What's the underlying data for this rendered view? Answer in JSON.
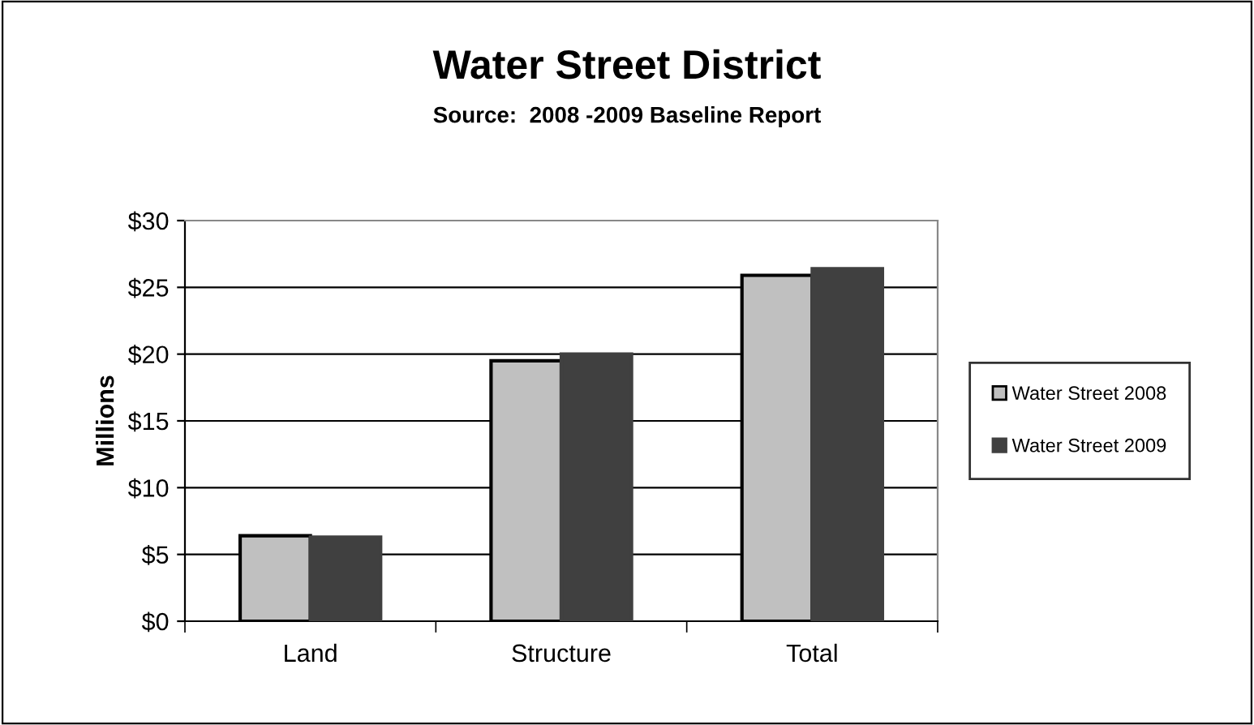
{
  "chart_data": {
    "type": "bar",
    "title": "Water Street District",
    "subtitle": "Source:  2008 -2009 Baseline Report",
    "ylabel": "Millions",
    "categories": [
      "Land",
      "Structure",
      "Total"
    ],
    "series": [
      {
        "name": "Water Street 2008",
        "color": "#c0c0c0",
        "values": [
          6.4,
          19.5,
          25.9
        ]
      },
      {
        "name": "Water Street 2009",
        "color": "#404040",
        "values": [
          6.3,
          20.0,
          26.4
        ]
      }
    ],
    "ylim": [
      0,
      30
    ],
    "yticks": [
      {
        "value": 0,
        "label": "$0"
      },
      {
        "value": 5,
        "label": "$5"
      },
      {
        "value": 10,
        "label": "$10"
      },
      {
        "value": 15,
        "label": "$15"
      },
      {
        "value": 20,
        "label": "$20"
      },
      {
        "value": 25,
        "label": "$25"
      },
      {
        "value": 30,
        "label": "$30"
      }
    ],
    "grid": "y",
    "legend": "right"
  }
}
